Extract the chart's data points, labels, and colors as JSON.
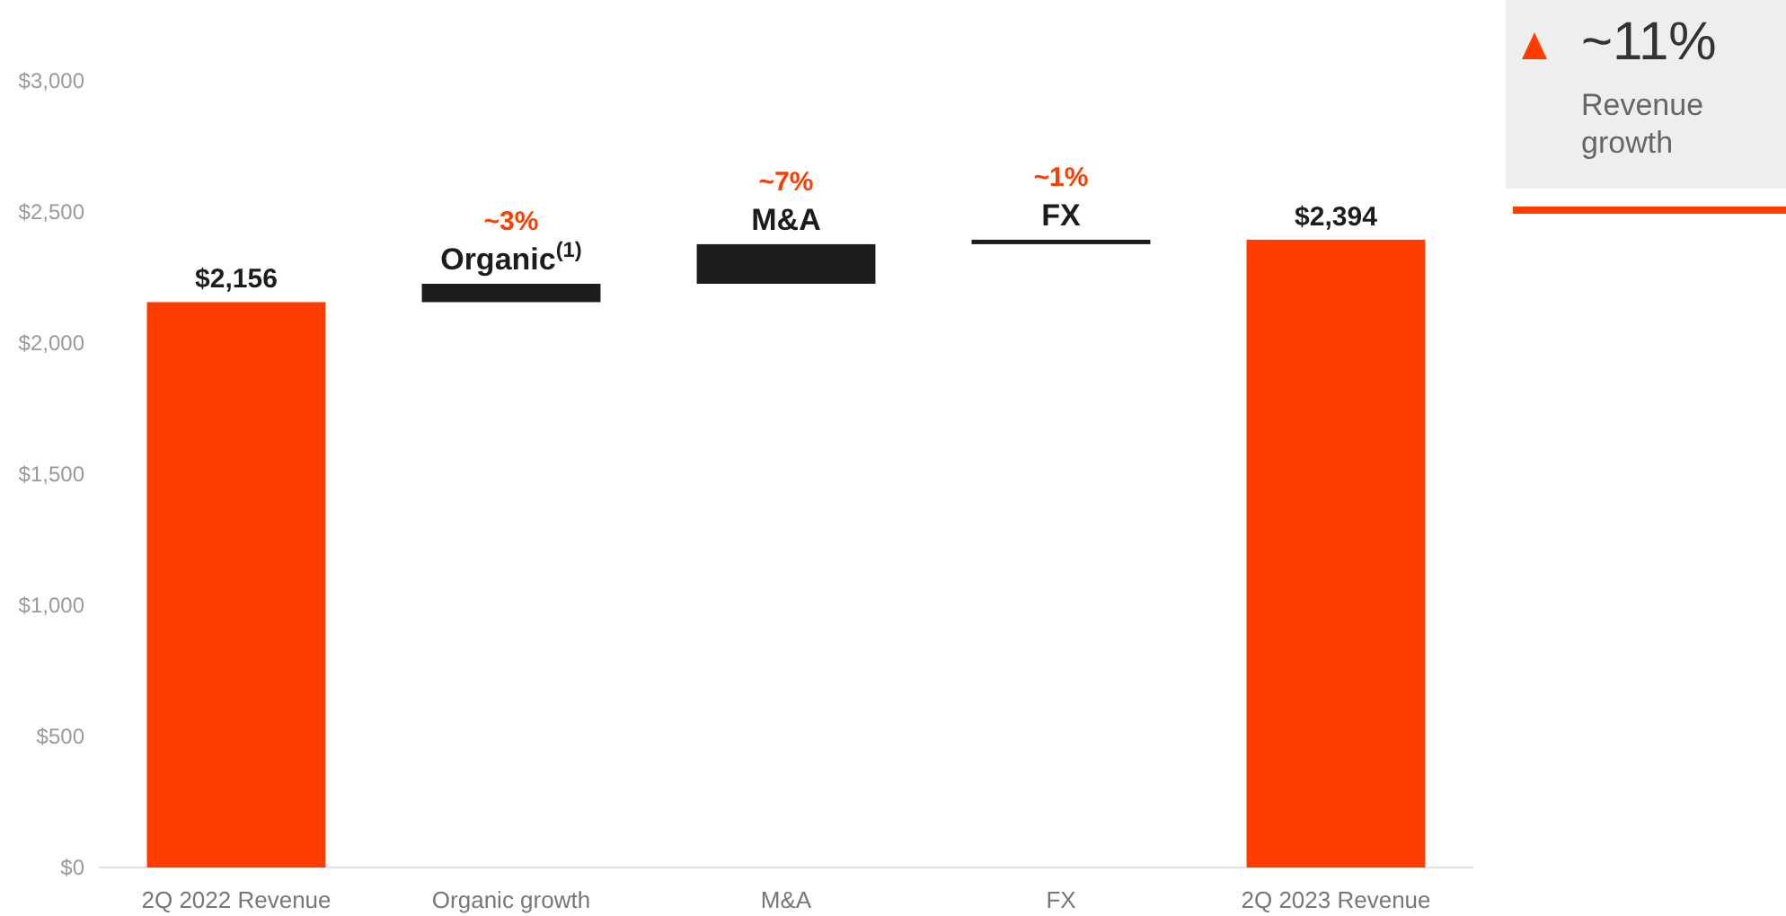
{
  "chart_data": {
    "type": "bar",
    "categories": [
      "2Q 2022 Revenue",
      "Organic growth",
      "M&A",
      "FX",
      "2Q 2023 Revenue"
    ],
    "values": [
      2156,
      70,
      151,
      17,
      2394
    ],
    "base": [
      0,
      2156,
      2226,
      2377,
      0
    ],
    "colors": [
      "#ff3d00",
      "#1c1c1c",
      "#1c1c1c",
      "#1c1c1c",
      "#ff3d00"
    ],
    "value_labels": [
      "$2,156",
      null,
      null,
      null,
      "$2,394"
    ],
    "ylim": [
      0,
      3000
    ],
    "yticks": [
      {
        "value": 0,
        "label": "$0"
      },
      {
        "value": 500,
        "label": "$500"
      },
      {
        "value": 1000,
        "label": "$1,000"
      },
      {
        "value": 1500,
        "label": "$1,500"
      },
      {
        "value": 2000,
        "label": "$2,000"
      },
      {
        "value": 2500,
        "label": "$2,500"
      },
      {
        "value": 3000,
        "label": "$3,000"
      }
    ],
    "grid": false,
    "annotations": [
      "~11%",
      "Revenue growth",
      {
        "text": "Organic$^{(1)}$",
        "x": "Organic growth",
        "y": 2226
      },
      {
        "text": "~3%",
        "x": "Organic growth",
        "y": 2226
      },
      {
        "text": "M&A",
        "x": "M&A",
        "y": 2377
      },
      {
        "text": "~7%",
        "x": "M&A",
        "y": 2377
      },
      {
        "text": "FX",
        "x": "FX",
        "y": 2394
      },
      {
        "text": "~1%",
        "x": "FX",
        "y": 2394
      }
    ]
  }
}
